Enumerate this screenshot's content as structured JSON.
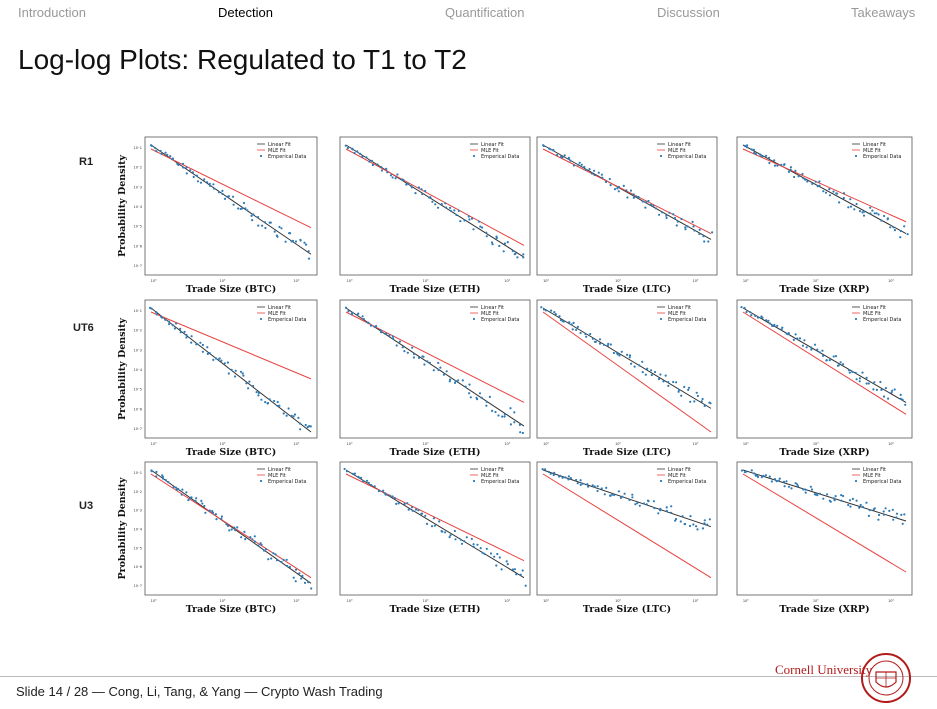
{
  "nav": {
    "items": [
      "Introduction",
      "Detection",
      "Quantification",
      "Discussion",
      "Takeaways"
    ],
    "active": "Detection"
  },
  "slide": {
    "title": "Log-log Plots: Regulated to T1 to T2"
  },
  "row_labels": [
    "R1",
    "UT6",
    "U3"
  ],
  "legend": {
    "linear": "Linear Fit",
    "mle": "MLE Fit",
    "emp": "Emperical Data"
  },
  "ylabel": "Probability Density",
  "chart_data": [
    {
      "type": "scatter",
      "exchange": "R1",
      "asset": "BTC",
      "xlabel": "Trade Size (BTC)",
      "ylabel": "Probability Density",
      "linear_slope": -1.85,
      "mle_slope": -1.4
    },
    {
      "type": "scatter",
      "exchange": "R1",
      "asset": "ETH",
      "xlabel": "Trade Size (ETH)",
      "ylabel": "",
      "linear_slope": -1.9,
      "mle_slope": -1.7
    },
    {
      "type": "scatter",
      "exchange": "R1",
      "asset": "LTC",
      "xlabel": "Trade Size (LTC)",
      "ylabel": "",
      "linear_slope": -1.6,
      "mle_slope": -1.5
    },
    {
      "type": "scatter",
      "exchange": "R1",
      "asset": "XRP",
      "xlabel": "Trade Size (XRP)",
      "ylabel": "",
      "linear_slope": -1.5,
      "mle_slope": -1.3
    },
    {
      "type": "scatter",
      "exchange": "UT6",
      "asset": "BTC",
      "xlabel": "Trade Size (BTC)",
      "ylabel": "Probability Density",
      "linear_slope": -2.1,
      "mle_slope": -1.2
    },
    {
      "type": "scatter",
      "exchange": "UT6",
      "asset": "ETH",
      "xlabel": "Trade Size (ETH)",
      "ylabel": "",
      "linear_slope": -2.0,
      "mle_slope": -1.6
    },
    {
      "type": "scatter",
      "exchange": "UT6",
      "asset": "LTC",
      "xlabel": "Trade Size (LTC)",
      "ylabel": "",
      "linear_slope": -1.7,
      "mle_slope": -2.1
    },
    {
      "type": "scatter",
      "exchange": "UT6",
      "asset": "XRP",
      "xlabel": "Trade Size (XRP)",
      "ylabel": "",
      "linear_slope": -1.6,
      "mle_slope": -1.8
    },
    {
      "type": "scatter",
      "exchange": "U3",
      "asset": "BTC",
      "xlabel": "Trade Size (BTC)",
      "ylabel": "Probability Density",
      "linear_slope": -2.0,
      "mle_slope": -1.9
    },
    {
      "type": "scatter",
      "exchange": "U3",
      "asset": "ETH",
      "xlabel": "Trade Size (ETH)",
      "ylabel": "",
      "linear_slope": -1.9,
      "mle_slope": -1.6
    },
    {
      "type": "scatter",
      "exchange": "U3",
      "asset": "LTC",
      "xlabel": "Trade Size (LTC)",
      "ylabel": "",
      "linear_slope": -1.0,
      "mle_slope": -1.9
    },
    {
      "type": "scatter",
      "exchange": "U3",
      "asset": "XRP",
      "xlabel": "Trade Size (XRP)",
      "ylabel": "",
      "linear_slope": -0.9,
      "mle_slope": -1.8
    }
  ],
  "footer": {
    "text": "Slide 14 / 28  —  Cong, Li, Tang, & Yang  —  Crypto Wash Trading",
    "university": "Cornell University"
  },
  "colors": {
    "accent": "#b31b1b",
    "linear": "#333333",
    "mle": "#e8423f",
    "emp": "#2e7bb6"
  }
}
